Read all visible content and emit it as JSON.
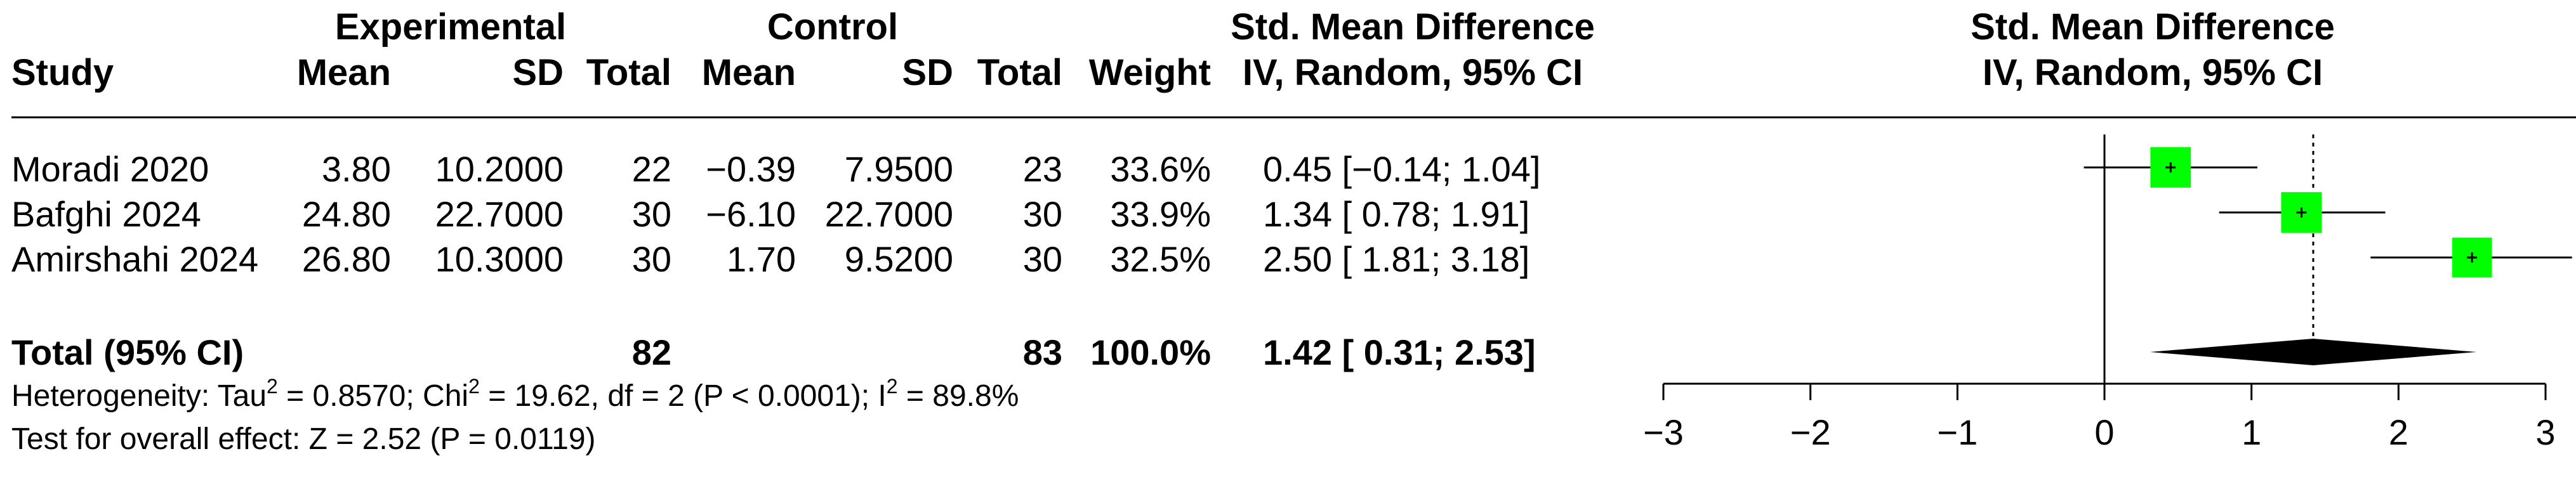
{
  "header": {
    "study": "Study",
    "experimental": "Experimental",
    "control": "Control",
    "mean": "Mean",
    "sd": "SD",
    "total": "Total",
    "weight": "Weight",
    "smd_line1": "Std. Mean Difference",
    "smd_line2": "IV, Random, 95% CI",
    "plot_line1": "Std. Mean Difference",
    "plot_line2": "IV, Random, 95% CI"
  },
  "studies": [
    {
      "study": "Moradi 2020",
      "e_mean": "3.80",
      "e_sd": "10.2000",
      "e_total": "22",
      "c_mean": "−0.39",
      "c_sd": "7.9500",
      "c_total": "23",
      "weight": "33.6%",
      "ci_text": "0.45 [−0.14; 1.04]"
    },
    {
      "study": "Bafghi 2024",
      "e_mean": "24.80",
      "e_sd": "22.7000",
      "e_total": "30",
      "c_mean": "−6.10",
      "c_sd": "22.7000",
      "c_total": "30",
      "weight": "33.9%",
      "ci_text": "1.34 [ 0.78; 1.91]"
    },
    {
      "study": "Amirshahi 2024",
      "e_mean": "26.80",
      "e_sd": "10.3000",
      "e_total": "30",
      "c_mean": "1.70",
      "c_sd": "9.5200",
      "c_total": "30",
      "weight": "32.5%",
      "ci_text": "2.50 [ 1.81; 3.18]"
    }
  ],
  "total": {
    "label": "Total (95% CI)",
    "e_total": "82",
    "c_total": "83",
    "weight": "100.0%",
    "ci_text": "1.42 [ 0.31; 2.53]"
  },
  "heterogeneity": {
    "prefix": "Heterogeneity: Tau",
    "tau_sup": "2",
    "tau_val": " = 0.8570; Chi",
    "chi_sup": "2",
    "chi_val": " = 19.62, df = 2 (P < 0.0001); I",
    "i_sup": "2",
    "i_val": " = 89.8%"
  },
  "overall_effect": "Test for overall effect: Z = 2.52 (P = 0.0119)",
  "colors": {
    "square": "#00ff00",
    "diamond": "#000000",
    "line": "#000000"
  },
  "chart_data": {
    "type": "forest",
    "studies": [
      {
        "name": "Moradi 2020",
        "smd": 0.45,
        "lower": -0.14,
        "upper": 1.04,
        "weight": 33.6
      },
      {
        "name": "Bafghi 2024",
        "smd": 1.34,
        "lower": 0.78,
        "upper": 1.91,
        "weight": 33.9
      },
      {
        "name": "Amirshahi 2024",
        "smd": 2.5,
        "lower": 1.81,
        "upper": 3.18,
        "weight": 32.5
      }
    ],
    "pooled": {
      "smd": 1.42,
      "lower": 0.31,
      "upper": 2.53
    },
    "xlim": [
      -3,
      3
    ],
    "ticks": [
      "−3",
      "−2",
      "−1",
      "0",
      "1",
      "2",
      "3"
    ],
    "null_line": 0
  }
}
